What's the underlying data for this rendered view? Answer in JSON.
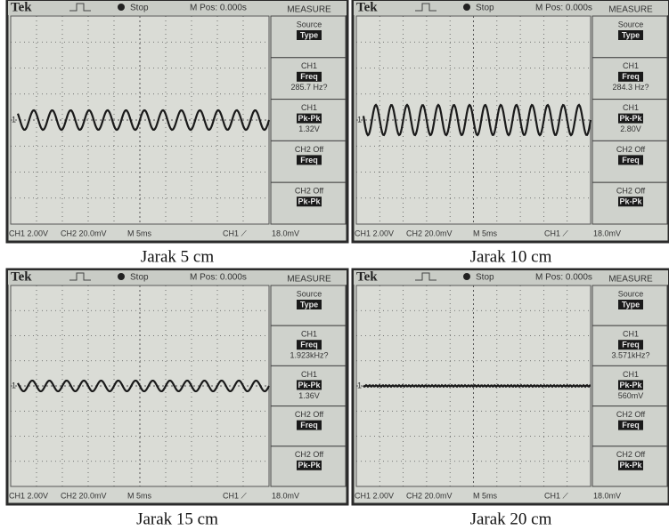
{
  "panels": [
    {
      "header": {
        "brand": "Tek",
        "status": "Stop",
        "position": "M Pos: 0.000s",
        "menu_title": "MEASURE"
      },
      "menu": [
        {
          "label": "Source",
          "badge": "Type"
        },
        {
          "label": "CH1",
          "badge": "Freq",
          "reading": "285.7 Hz?"
        },
        {
          "label": "CH1",
          "badge": "Pk-Pk",
          "reading": "1.32V"
        },
        {
          "label": "CH2 Off",
          "badge": "Freq"
        },
        {
          "label": "CH2 Off",
          "badge": "Pk-Pk"
        }
      ],
      "channel_marker": "1",
      "footer": [
        "CH1 2.00V",
        "CH2 20.0mV",
        "M 5ms",
        "CH1 ⟋",
        "18.0mV"
      ],
      "caption": "Jarak 5 cm"
    },
    {
      "header": {
        "brand": "Tek",
        "status": "Stop",
        "position": "M Pos: 0.000s",
        "menu_title": "MEASURE"
      },
      "menu": [
        {
          "label": "Source",
          "badge": "Type"
        },
        {
          "label": "CH1",
          "badge": "Freq",
          "reading": "284.3 Hz?"
        },
        {
          "label": "CH1",
          "badge": "Pk-Pk",
          "reading": "2.80V"
        },
        {
          "label": "CH2 Off",
          "badge": "Freq"
        },
        {
          "label": "CH2 Off",
          "badge": "Pk-Pk"
        }
      ],
      "channel_marker": "1",
      "footer": [
        "CH1 2.00V",
        "CH2 20.0mV",
        "M 5ms",
        "CH1 ⟋",
        "18.0mV"
      ],
      "caption": "Jarak 10 cm"
    },
    {
      "header": {
        "brand": "Tek",
        "status": "Stop",
        "position": "M Pos: 0.000s",
        "menu_title": "MEASURE"
      },
      "menu": [
        {
          "label": "Source",
          "badge": "Type"
        },
        {
          "label": "CH1",
          "badge": "Freq",
          "reading": "1.923kHz?"
        },
        {
          "label": "CH1",
          "badge": "Pk-Pk",
          "reading": "1.36V"
        },
        {
          "label": "CH2 Off",
          "badge": "Freq"
        },
        {
          "label": "CH2 Off",
          "badge": "Pk-Pk"
        }
      ],
      "channel_marker": "1",
      "footer": [
        "CH1 2.00V",
        "CH2 20.0mV",
        "M 5ms",
        "CH1 ⟋",
        "18.0mV"
      ],
      "caption": "Jarak 15 cm"
    },
    {
      "header": {
        "brand": "Tek",
        "status": "Stop",
        "position": "M Pos: 0.000s",
        "menu_title": "MEASURE"
      },
      "menu": [
        {
          "label": "Source",
          "badge": "Type"
        },
        {
          "label": "CH1",
          "badge": "Freq",
          "reading": "3.571kHz?"
        },
        {
          "label": "CH1",
          "badge": "Pk-Pk",
          "reading": "560mV"
        },
        {
          "label": "CH2 Off",
          "badge": "Freq"
        },
        {
          "label": "CH2 Off",
          "badge": "Pk-Pk"
        }
      ],
      "channel_marker": "1",
      "footer": [
        "CH1 2.00V",
        "CH2 20.0mV",
        "M 5ms",
        "CH1 ⟋",
        "18.0mV"
      ],
      "caption": "Jarak 20 cm"
    }
  ]
}
